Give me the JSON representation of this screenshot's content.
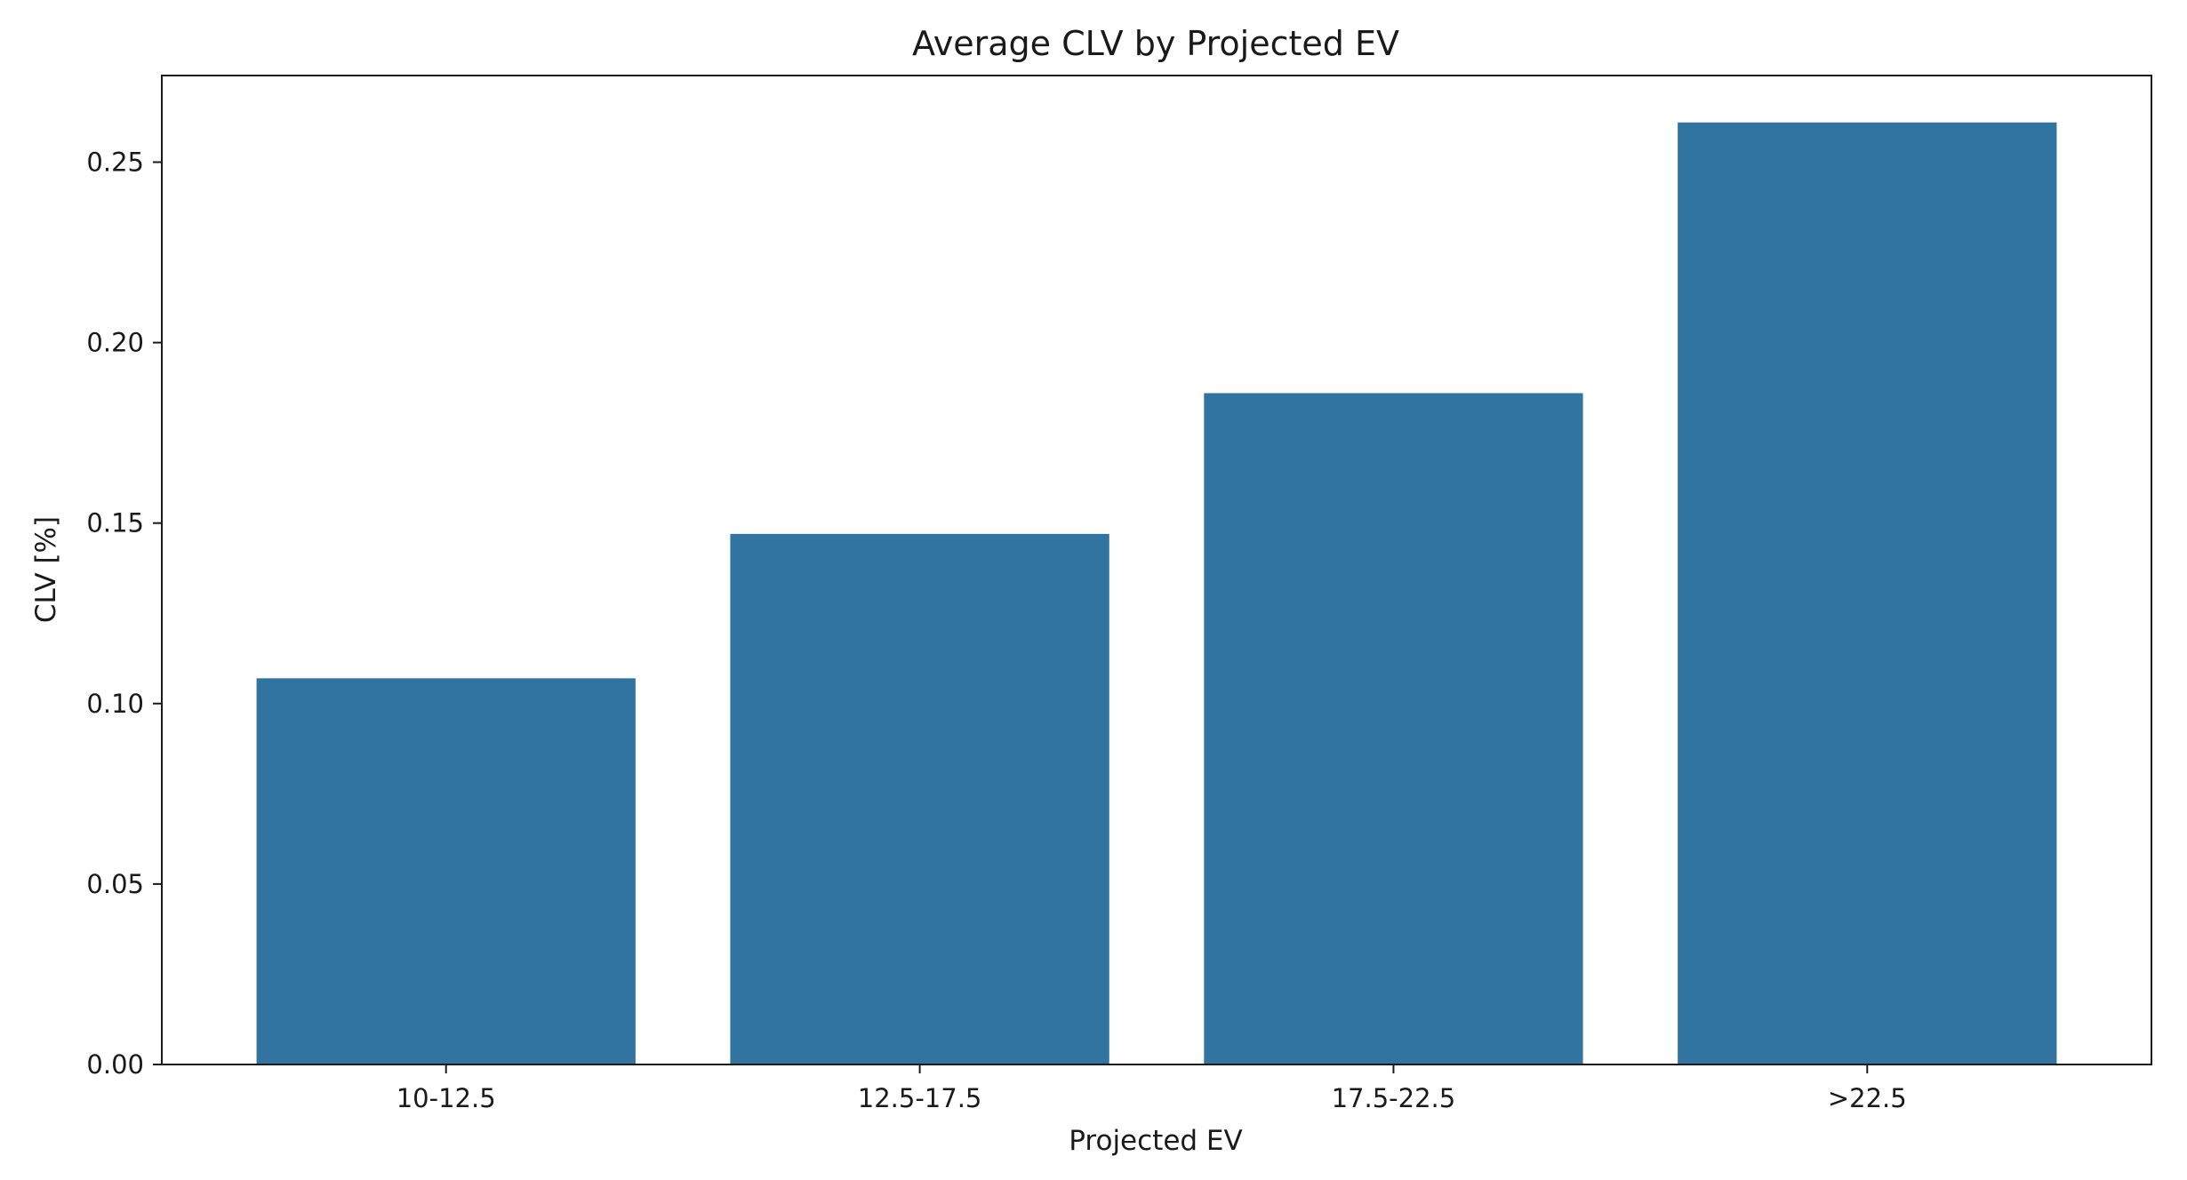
{
  "chart_data": {
    "type": "bar",
    "title": "Average CLV by Projected EV",
    "xlabel": "Projected EV",
    "ylabel": "CLV [%]",
    "categories": [
      "10-12.5",
      "12.5-17.5",
      "17.5-22.5",
      ">22.5"
    ],
    "values": [
      0.107,
      0.147,
      0.186,
      0.261
    ],
    "ylim": [
      0,
      0.274
    ],
    "yticks": [
      0.0,
      0.05,
      0.1,
      0.15,
      0.2,
      0.25
    ],
    "ytick_labels": [
      "0.00",
      "0.05",
      "0.10",
      "0.15",
      "0.20",
      "0.25"
    ],
    "bar_color": "#3274a1",
    "grid": false,
    "legend": "none"
  }
}
